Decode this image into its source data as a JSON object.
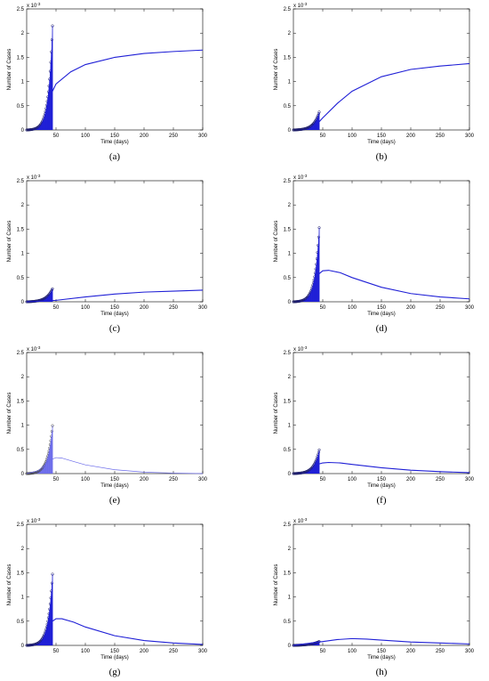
{
  "chart_data": [
    {
      "type": "line",
      "label": "(a)",
      "panel_letter": "a",
      "xlabel": "Time (days)",
      "ylabel": "Number of Cases",
      "y_exponent_label": "x 10",
      "y_exponent": "-3",
      "xlim": [
        0,
        300
      ],
      "ylim": [
        0,
        2.5
      ],
      "xticks": [
        "50",
        "100",
        "150",
        "200",
        "250",
        "300"
      ],
      "yticks": [
        "0",
        "0.5",
        "1",
        "1.5",
        "2",
        "2.5"
      ],
      "series": [
        {
          "kind": "observed",
          "end_x": 44,
          "end_y": 2.15
        },
        {
          "kind": "model",
          "x": [
            44,
            50,
            75,
            100,
            150,
            200,
            250,
            300
          ],
          "y": [
            0.8,
            0.95,
            1.2,
            1.35,
            1.5,
            1.58,
            1.62,
            1.65
          ]
        }
      ]
    },
    {
      "type": "line",
      "label": "(b)",
      "panel_letter": "b",
      "xlabel": "Time (days)",
      "ylabel": "Number of Cases",
      "y_exponent_label": "x 10",
      "y_exponent": "-3",
      "xlim": [
        0,
        300
      ],
      "ylim": [
        0,
        2.5
      ],
      "xticks": [
        "50",
        "100",
        "150",
        "200",
        "250",
        "300"
      ],
      "yticks": [
        "0",
        "0.5",
        "1",
        "1.5",
        "2",
        "2.5"
      ],
      "series": [
        {
          "kind": "observed",
          "end_x": 44,
          "end_y": 0.37
        },
        {
          "kind": "model",
          "x": [
            44,
            50,
            75,
            100,
            150,
            200,
            250,
            300
          ],
          "y": [
            0.17,
            0.25,
            0.55,
            0.8,
            1.1,
            1.25,
            1.32,
            1.37
          ]
        }
      ]
    },
    {
      "type": "line",
      "label": "(c)",
      "panel_letter": "c",
      "xlabel": "Time (days)",
      "ylabel": "Number of Cases",
      "y_exponent_label": "x 10",
      "y_exponent": "-3",
      "xlim": [
        0,
        300
      ],
      "ylim": [
        0,
        2.5
      ],
      "xticks": [
        "50",
        "100",
        "150",
        "200",
        "250",
        "300"
      ],
      "yticks": [
        "0",
        "0.5",
        "1",
        "1.5",
        "2",
        "2.5"
      ],
      "series": [
        {
          "kind": "observed",
          "end_x": 44,
          "end_y": 0.27
        },
        {
          "kind": "model",
          "x": [
            0,
            50,
            100,
            150,
            200,
            250,
            300
          ],
          "y": [
            0,
            0.03,
            0.1,
            0.16,
            0.2,
            0.22,
            0.24
          ]
        }
      ]
    },
    {
      "type": "line",
      "label": "(d)",
      "panel_letter": "d",
      "xlabel": "Time (days)",
      "ylabel": "Number of Cases",
      "y_exponent_label": "x 10",
      "y_exponent": "-3",
      "xlim": [
        0,
        300
      ],
      "ylim": [
        0,
        2.5
      ],
      "xticks": [
        "50",
        "100",
        "150",
        "200",
        "250",
        "300"
      ],
      "yticks": [
        "0",
        "0.5",
        "1",
        "1.5",
        "2",
        "2.5"
      ],
      "series": [
        {
          "kind": "observed",
          "end_x": 44,
          "end_y": 1.53
        },
        {
          "kind": "model",
          "x": [
            44,
            50,
            60,
            80,
            100,
            150,
            200,
            250,
            300
          ],
          "y": [
            0.58,
            0.64,
            0.65,
            0.6,
            0.5,
            0.3,
            0.17,
            0.1,
            0.06
          ]
        }
      ]
    },
    {
      "type": "line",
      "label": "(e)",
      "panel_letter": "e",
      "xlabel": "Time (days)",
      "ylabel": "Number of Cases",
      "y_exponent_label": "x 10",
      "y_exponent": "-3",
      "xlim": [
        0,
        300
      ],
      "ylim": [
        0,
        2.5
      ],
      "xticks": [
        "50",
        "100",
        "150",
        "200",
        "250",
        "300"
      ],
      "yticks": [
        "0",
        "0.5",
        "1",
        "1.5",
        "2",
        "2.5"
      ],
      "series": [
        {
          "kind": "observed",
          "end_x": 44,
          "end_y": 0.99
        },
        {
          "kind": "model",
          "x": [
            0,
            20,
            40,
            50,
            60,
            80,
            100,
            150,
            200,
            250,
            300
          ],
          "y": [
            0,
            0.06,
            0.28,
            0.33,
            0.32,
            0.25,
            0.18,
            0.08,
            0.03,
            0.01,
            0
          ]
        }
      ]
    },
    {
      "type": "line",
      "label": "(f)",
      "panel_letter": "f",
      "xlabel": "Time (days)",
      "ylabel": "Number of Cases",
      "y_exponent_label": "x 10",
      "y_exponent": "-3",
      "xlim": [
        0,
        300
      ],
      "ylim": [
        0,
        2.5
      ],
      "xticks": [
        "50",
        "100",
        "150",
        "200",
        "250",
        "300"
      ],
      "yticks": [
        "0",
        "0.5",
        "1",
        "1.5",
        "2",
        "2.5"
      ],
      "series": [
        {
          "kind": "observed",
          "end_x": 44,
          "end_y": 0.49
        },
        {
          "kind": "model",
          "x": [
            44,
            50,
            60,
            80,
            100,
            150,
            200,
            250,
            300
          ],
          "y": [
            0.2,
            0.22,
            0.23,
            0.22,
            0.19,
            0.12,
            0.07,
            0.04,
            0.02
          ]
        }
      ]
    },
    {
      "type": "line",
      "label": "(g)",
      "panel_letter": "g",
      "xlabel": "Time (days)",
      "ylabel": "Number of Cases",
      "y_exponent_label": "x 10",
      "y_exponent": "-3",
      "xlim": [
        0,
        300
      ],
      "ylim": [
        0,
        2.5
      ],
      "xticks": [
        "50",
        "100",
        "150",
        "200",
        "250",
        "300"
      ],
      "yticks": [
        "0",
        "0.5",
        "1",
        "1.5",
        "2",
        "2.5"
      ],
      "series": [
        {
          "kind": "observed",
          "end_x": 44,
          "end_y": 1.47
        },
        {
          "kind": "model",
          "x": [
            44,
            50,
            60,
            80,
            100,
            150,
            200,
            250,
            300
          ],
          "y": [
            0.5,
            0.55,
            0.55,
            0.48,
            0.38,
            0.2,
            0.1,
            0.05,
            0.02
          ]
        }
      ]
    },
    {
      "type": "line",
      "label": "(h)",
      "panel_letter": "h",
      "xlabel": "Time (days)",
      "ylabel": "Number of Cases",
      "y_exponent_label": "x 10",
      "y_exponent": "-3",
      "xlim": [
        0,
        300
      ],
      "ylim": [
        0,
        2.5
      ],
      "xticks": [
        "50",
        "100",
        "150",
        "200",
        "250",
        "300"
      ],
      "yticks": [
        "0",
        "0.5",
        "1",
        "1.5",
        "2",
        "2.5"
      ],
      "series": [
        {
          "kind": "observed",
          "end_x": 44,
          "end_y": 0.08
        },
        {
          "kind": "model",
          "x": [
            0,
            30,
            50,
            75,
            100,
            125,
            150,
            200,
            250,
            300
          ],
          "y": [
            0,
            0.05,
            0.08,
            0.12,
            0.14,
            0.13,
            0.11,
            0.07,
            0.05,
            0.03
          ]
        }
      ]
    }
  ],
  "colors": {
    "series": "#1f1fd6",
    "faint": "#6b6bea",
    "axis": "#000000"
  }
}
